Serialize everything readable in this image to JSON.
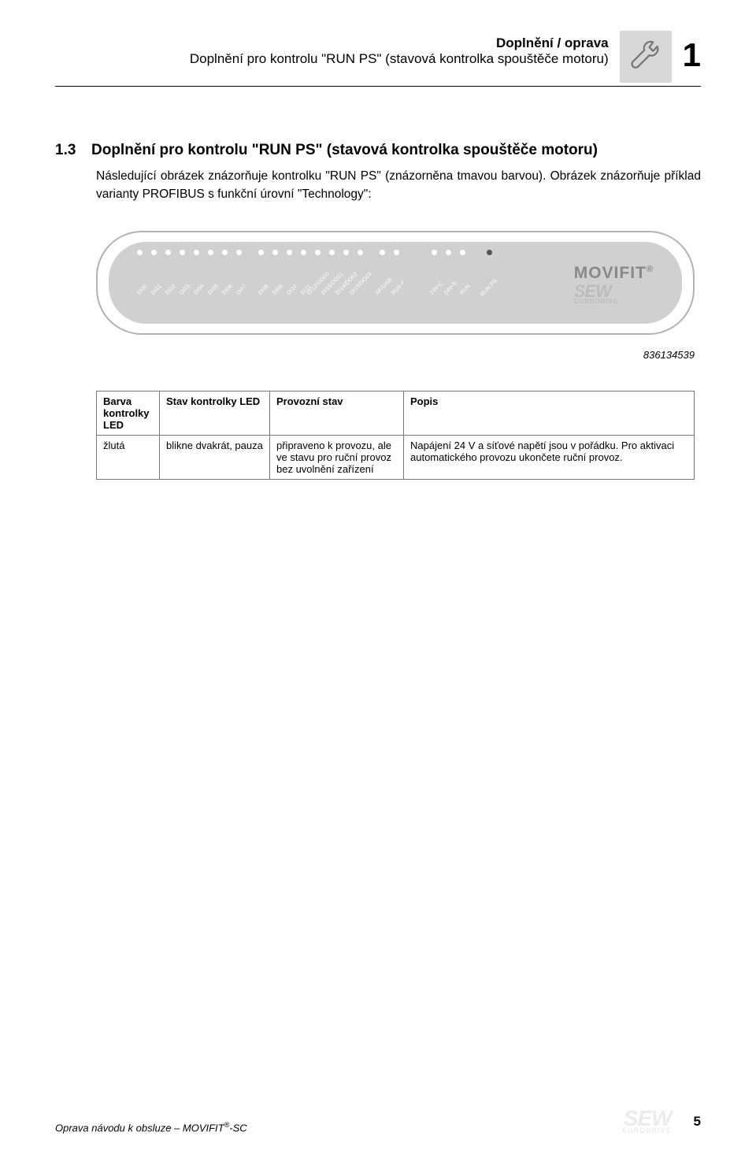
{
  "header": {
    "title_line1": "Doplnění / oprava",
    "title_line2": "Doplnění pro kontrolu \"RUN PS\" (stavová kontrolka spouštěče motoru)",
    "page_section_number": "1"
  },
  "section": {
    "number": "1.3",
    "heading": "Doplnění pro kontrolu \"RUN PS\" (stavová kontrolka spouštěče motoru)",
    "para1": "Následující obrázek znázorňuje kontrolku \"RUN PS\" (znázorněna tmavou barvou). Obrázek znázorňuje příklad varianty PROFIBUS s funkční úrovní \"Technology\":"
  },
  "device": {
    "leds_group1": [
      "DI00",
      "DI01",
      "DI02",
      "DI03",
      "DI04",
      "DI05",
      "DI06",
      "DI07"
    ],
    "leds_group2": [
      "DI08",
      "DI09",
      "DI10",
      "DI11",
      "DI12/DO00",
      "DI13/DO01",
      "DI14/DO02",
      "DI15/DO03"
    ],
    "leds_group3": [
      "SF/USR",
      "BUS-F"
    ],
    "leds_group4": [
      "24V-C",
      "24V-S",
      "RUN"
    ],
    "runps_label": "RUN PS",
    "brand_movifit": "MOVIFIT",
    "brand_sew": "SEW",
    "brand_euro": "EURODRIVE",
    "figure_id": "836134539",
    "colors": {
      "panel_border": "#b2b2b2",
      "panel_fill": "#d0d0d0",
      "led_light": "#ffffff",
      "led_dark": "#555555",
      "brand_grey": "#888888",
      "logo_faint": "#bcbcbc"
    }
  },
  "table": {
    "headers": [
      "Barva kontrolky LED",
      "Stav kontrolky LED",
      "Provozní stav",
      "Popis"
    ],
    "row": {
      "c1": "žlutá",
      "c2": "blikne dvakrát, pauza",
      "c3": "připraveno k provozu, ale ve stavu pro ruční provoz bez uvolnění zařízení",
      "c4": "Napájení 24 V a síťové napětí jsou v pořádku. Pro aktivaci automatického provozu ukončete ruční provoz."
    }
  },
  "footer": {
    "text_prefix": "Oprava návodu k obsluze – MOVIFIT",
    "text_suffix": "-SC",
    "page_number": "5",
    "logo_sew": "SEW",
    "logo_euro": "EURODRIVE"
  }
}
